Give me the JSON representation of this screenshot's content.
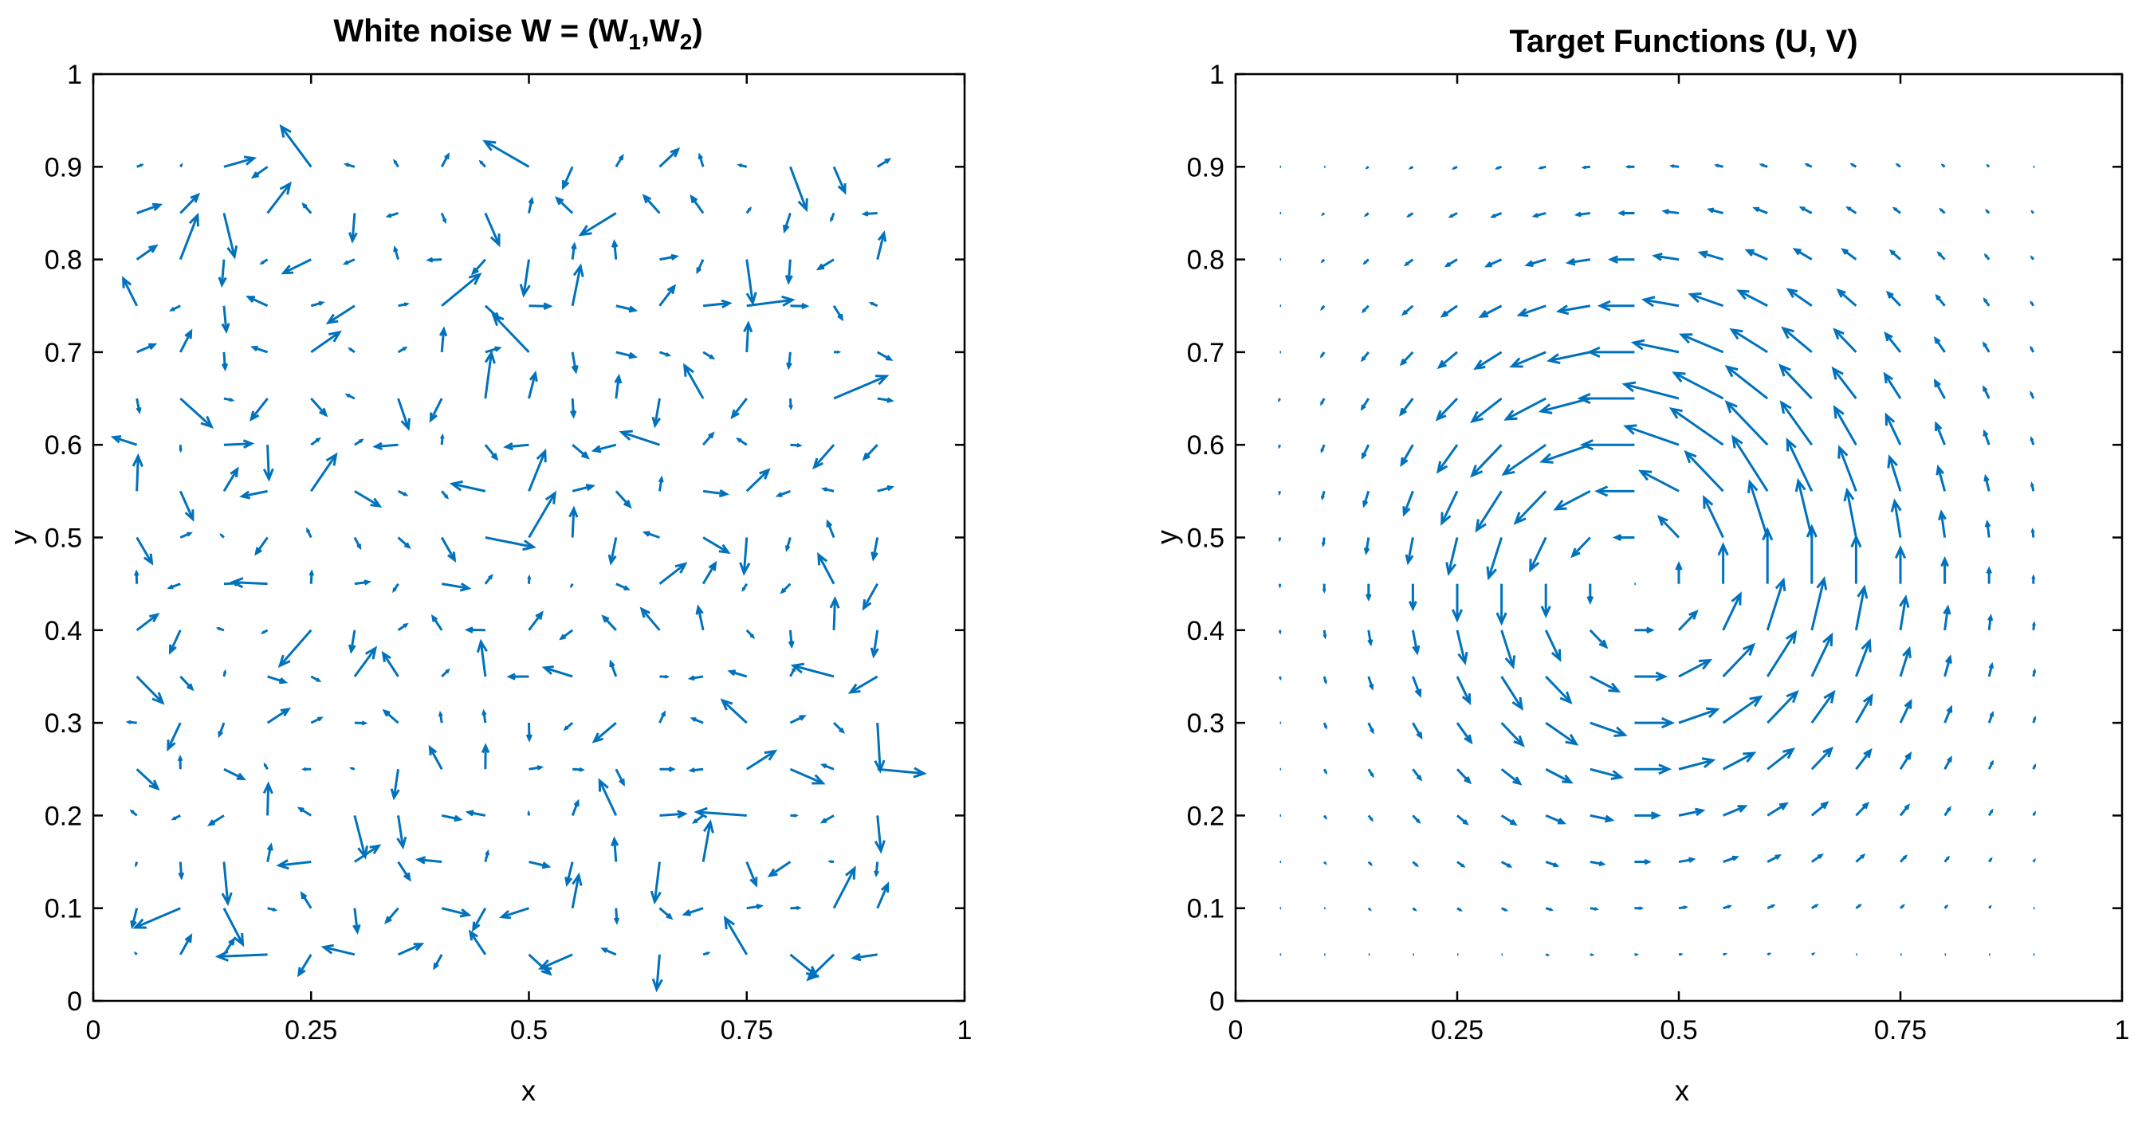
{
  "colors": {
    "arrow": "#0072BD",
    "axes": "#000000",
    "background": "#ffffff"
  },
  "chart_data": [
    {
      "type": "quiver",
      "title": "White noise W = (W",
      "title_sub1": "1",
      "title_mid": ",W",
      "title_sub2": "2",
      "title_end": ")",
      "xlabel": "x",
      "ylabel": "y",
      "xlim": [
        0,
        1
      ],
      "ylim": [
        0,
        1
      ],
      "xticks": [
        0,
        0.25,
        0.5,
        0.75,
        1
      ],
      "xtick_labels": [
        "0",
        "0.25",
        "0.5",
        "0.75",
        "1"
      ],
      "yticks": [
        0,
        0.1,
        0.2,
        0.3,
        0.4,
        0.5,
        0.6,
        0.7,
        0.8,
        0.9,
        1
      ],
      "ytick_labels": [
        "0",
        "0.1",
        "0.2",
        "0.3",
        "0.4",
        "0.5",
        "0.6",
        "0.7",
        "0.8",
        "0.9",
        "1"
      ],
      "grid": "off",
      "field": "random",
      "x_grid": [
        0.05,
        0.1,
        0.15,
        0.2,
        0.25,
        0.3,
        0.35,
        0.4,
        0.45,
        0.5,
        0.55,
        0.6,
        0.65,
        0.7,
        0.75,
        0.8,
        0.85,
        0.9
      ],
      "y_grid": [
        0.05,
        0.1,
        0.15,
        0.2,
        0.25,
        0.3,
        0.35,
        0.4,
        0.45,
        0.5,
        0.55,
        0.6,
        0.65,
        0.7,
        0.75,
        0.8,
        0.85,
        0.9
      ],
      "max_arrow_length": 0.065
    },
    {
      "type": "quiver",
      "title": "Target Functions (U, V)",
      "xlabel": "x",
      "ylabel": "y",
      "xlim": [
        0,
        1
      ],
      "ylim": [
        0,
        1
      ],
      "xticks": [
        0,
        0.25,
        0.5,
        0.75,
        1
      ],
      "xtick_labels": [
        "0",
        "0.25",
        "0.5",
        "0.75",
        "1"
      ],
      "yticks": [
        0,
        0.1,
        0.2,
        0.3,
        0.4,
        0.5,
        0.6,
        0.7,
        0.8,
        0.9,
        1
      ],
      "ytick_labels": [
        "0",
        "0.1",
        "0.2",
        "0.3",
        "0.4",
        "0.5",
        "0.6",
        "0.7",
        "0.8",
        "0.9",
        "1"
      ],
      "grid": "off",
      "field": "vortex",
      "vortex_center": [
        0.45,
        0.45
      ],
      "x_grid": [
        0.05,
        0.1,
        0.15,
        0.2,
        0.25,
        0.3,
        0.35,
        0.4,
        0.45,
        0.5,
        0.55,
        0.6,
        0.65,
        0.7,
        0.75,
        0.8,
        0.85,
        0.9
      ],
      "y_grid": [
        0.05,
        0.1,
        0.15,
        0.2,
        0.25,
        0.3,
        0.35,
        0.4,
        0.45,
        0.5,
        0.55,
        0.6,
        0.65,
        0.7,
        0.75,
        0.8,
        0.85,
        0.9
      ],
      "max_arrow_length": 0.07
    }
  ]
}
